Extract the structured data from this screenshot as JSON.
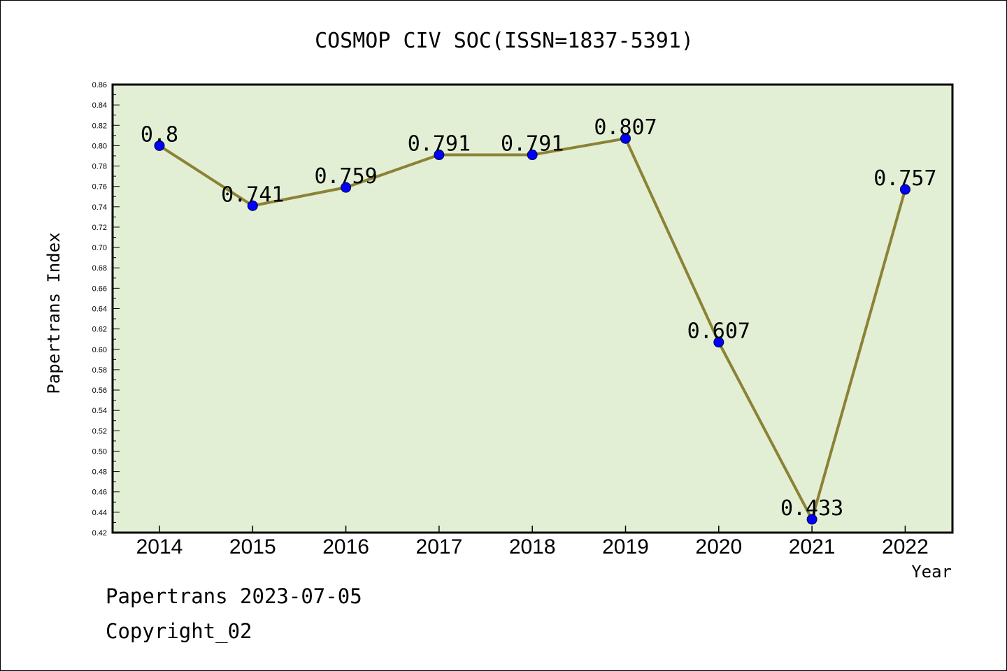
{
  "footer": {
    "line1": "Papertrans 2023-07-05",
    "line2": "Copyright_02"
  },
  "chart_data": {
    "type": "line",
    "title": "COSMOP CIV SOC(ISSN=1837-5391)",
    "xlabel": "Year",
    "ylabel": "Papertrans Index",
    "categories": [
      "2014",
      "2015",
      "2016",
      "2017",
      "2018",
      "2019",
      "2020",
      "2021",
      "2022"
    ],
    "series": [
      {
        "values": [
          0.8,
          0.741,
          0.759,
          0.791,
          0.791,
          0.807,
          0.607,
          0.433,
          0.757
        ],
        "labels": [
          "0.8",
          "0.741",
          "0.759",
          "0.791",
          "0.791",
          "0.807",
          "0.607",
          "0.433",
          "0.757"
        ]
      }
    ],
    "ylim": [
      0.42,
      0.86
    ],
    "yticks": [
      "0.42",
      "0.44",
      "0.46",
      "0.48",
      "0.50",
      "0.52",
      "0.54",
      "0.56",
      "0.58",
      "0.60",
      "0.62",
      "0.64",
      "0.66",
      "0.68",
      "0.70",
      "0.72",
      "0.74",
      "0.76",
      "0.78",
      "0.80",
      "0.82",
      "0.84",
      "0.86"
    ],
    "grid": false,
    "colors": {
      "plot_background": "#e2efd5",
      "line": "#8b8235",
      "marker": "#0000ff"
    }
  }
}
